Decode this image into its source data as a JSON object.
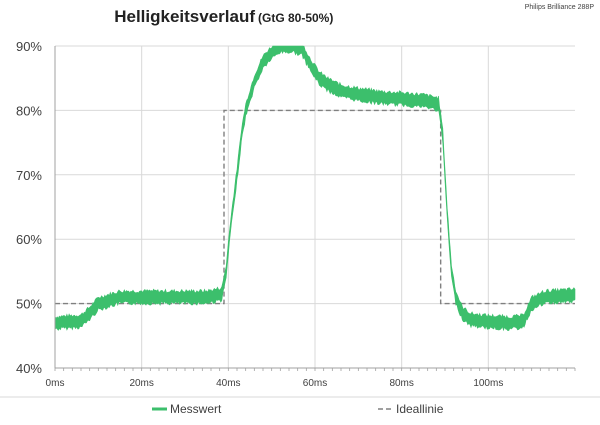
{
  "header": {
    "title": "Helligkeitsverlauf",
    "subtitle": "(GtG 80-50%)",
    "model": "Philips Brilliance 288P"
  },
  "colors": {
    "measured": "#3cbf6c",
    "ideal": "#808080",
    "grid": "#d9d9d9",
    "axis": "#a0a0a0",
    "text": "#404040"
  },
  "legend": {
    "measured_label": "Messwert",
    "ideal_label": "Ideallinie"
  },
  "chart_data": {
    "type": "line",
    "title": "Helligkeitsverlauf (GtG 80-50%)",
    "xlabel": "",
    "ylabel": "",
    "xlim": [
      0,
      120
    ],
    "ylim": [
      40,
      90
    ],
    "x_ticks": [
      0,
      20,
      40,
      60,
      80,
      100
    ],
    "x_tick_labels": [
      "0ms",
      "20ms",
      "40ms",
      "60ms",
      "80ms",
      "100ms"
    ],
    "y_ticks": [
      40,
      50,
      60,
      70,
      80,
      90
    ],
    "y_tick_labels": [
      "40%",
      "50%",
      "60%",
      "70%",
      "80%",
      "90%"
    ],
    "grid": true,
    "legend_position": "bottom",
    "series": [
      {
        "name": "Messwert",
        "x": [
          0,
          6,
          8,
          10,
          15,
          25,
          35,
          38.5,
          39.5,
          40.5,
          42,
          43,
          44,
          46,
          48,
          50,
          52,
          55,
          57,
          59,
          61,
          63,
          66,
          70,
          75,
          80,
          85,
          88.5,
          89.5,
          90.5,
          91.5,
          92.5,
          94,
          96,
          100,
          105,
          108,
          110,
          113,
          120
        ],
        "y": [
          47,
          47.3,
          48.5,
          50,
          51,
          51,
          51,
          51.5,
          55,
          62,
          70,
          76,
          80,
          84.5,
          87.5,
          89,
          90,
          90,
          89.5,
          87,
          85,
          84,
          83,
          82.5,
          82,
          81.8,
          81.5,
          81,
          76,
          64,
          55,
          51,
          48.5,
          47.5,
          47.2,
          47,
          47.2,
          50,
          51,
          51.3
        ],
        "noise_band": 1.3
      },
      {
        "name": "Ideallinie",
        "x": [
          0,
          39,
          39,
          89,
          89,
          120
        ],
        "y": [
          50,
          50,
          80,
          80,
          50,
          50
        ]
      }
    ]
  }
}
